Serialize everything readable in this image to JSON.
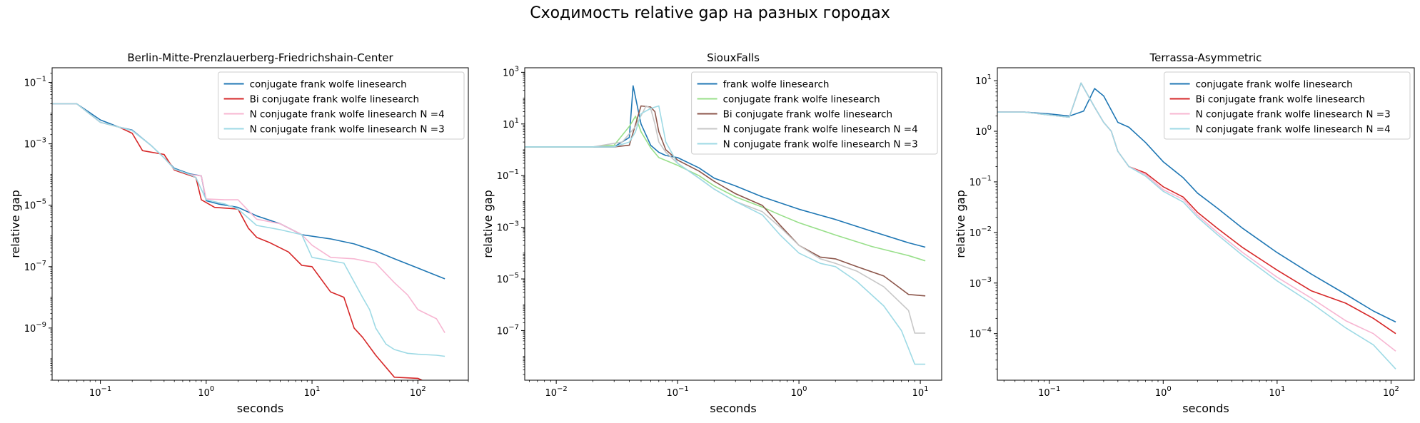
{
  "suptitle": "Сходимость relative gap на разных городах",
  "colors": {
    "blue": "#1f77b4",
    "red": "#d62728",
    "pink": "#f7b6d2",
    "cyan": "#9edae5",
    "green": "#98df8a",
    "brown": "#8c564b",
    "gray": "#c7c7c7"
  },
  "chart_data": [
    {
      "type": "line",
      "title": "Berlin-Mitte-Prenzlauerberg-Friedrichshain-Center",
      "xlabel": "seconds",
      "ylabel": "relative gap",
      "xscale": "log",
      "yscale": "log",
      "xlim": [
        0.035,
        300
      ],
      "ylim": [
        2e-11,
        0.3
      ],
      "xticks": [
        0.1,
        1,
        10,
        100
      ],
      "xtick_labels": [
        "10^-1",
        "10^0",
        "10^1",
        "10^2"
      ],
      "yticks": [
        1e-09,
        1e-07,
        1e-05,
        0.001,
        0.1
      ],
      "ytick_labels": [
        "10^-9",
        "10^-7",
        "10^-5",
        "10^-3",
        "10^-1"
      ],
      "legend_loc": "upper right",
      "series": [
        {
          "name": "conjugate frank wolfe linesearch",
          "color": "#1f77b4",
          "x": [
            0.035,
            0.06,
            0.1,
            0.15,
            0.2,
            0.3,
            0.4,
            0.5,
            0.7,
            0.9,
            1.0,
            1.3,
            2,
            3,
            5,
            8,
            15,
            25,
            40,
            60,
            100,
            180
          ],
          "y": [
            0.02,
            0.02,
            0.006,
            0.0035,
            0.0028,
            0.0009,
            0.00035,
            0.00016,
            0.000105,
            9e-05,
            1.4e-05,
            1.1e-05,
            8.5e-06,
            4.5e-06,
            2.5e-06,
            1.1e-06,
            8e-07,
            5.5e-07,
            3.2e-07,
            1.8e-07,
            9e-08,
            4e-08
          ]
        },
        {
          "name": "Bi conjugate frank wolfe linesearch",
          "color": "#d62728",
          "x": [
            0.035,
            0.06,
            0.1,
            0.15,
            0.2,
            0.25,
            0.4,
            0.5,
            0.8,
            0.9,
            1.2,
            2,
            2.5,
            3,
            4,
            6,
            8,
            10,
            15,
            20,
            25,
            30,
            40,
            60,
            100,
            150,
            200
          ],
          "y": [
            0.02,
            0.02,
            0.005,
            0.0035,
            0.0022,
            0.0006,
            0.00045,
            0.00014,
            8e-05,
            1.5e-05,
            8.5e-06,
            7.5e-06,
            1.8e-06,
            9e-07,
            6e-07,
            3e-07,
            1.1e-07,
            1e-07,
            1.5e-08,
            1e-08,
            1e-09,
            5e-10,
            1.3e-10,
            2.5e-11,
            2.3e-11,
            1.2e-11,
            8e-12
          ]
        },
        {
          "name": "N conjugate frank wolfe linesearch N =4",
          "color": "#f7b6d2",
          "x": [
            0.035,
            0.06,
            0.1,
            0.15,
            0.2,
            0.3,
            0.4,
            0.5,
            0.7,
            0.9,
            1.0,
            1.5,
            2,
            3,
            5,
            8,
            10,
            15,
            25,
            40,
            60,
            80,
            100,
            150,
            180
          ],
          "y": [
            0.02,
            0.02,
            0.005,
            0.0035,
            0.0027,
            0.0009,
            0.00035,
            0.00015,
            0.0001,
            9e-05,
            1.6e-05,
            1.5e-05,
            1.5e-05,
            3.5e-06,
            2.5e-06,
            1.1e-06,
            5e-07,
            2e-07,
            1.8e-07,
            1.3e-07,
            3e-08,
            1.2e-08,
            4e-09,
            2e-09,
            7e-10
          ]
        },
        {
          "name": "N conjugate frank wolfe linesearch N =3",
          "color": "#9edae5",
          "x": [
            0.035,
            0.06,
            0.1,
            0.15,
            0.2,
            0.3,
            0.4,
            0.5,
            0.7,
            0.8,
            1.0,
            1.5,
            2,
            3,
            5,
            8,
            10,
            20,
            30,
            35,
            40,
            50,
            60,
            80,
            100,
            150,
            180
          ],
          "y": [
            0.02,
            0.02,
            0.005,
            0.0035,
            0.0027,
            0.0009,
            0.00035,
            0.00015,
            0.0001,
            8e-05,
            1.5e-05,
            1.1e-05,
            7.5e-06,
            2.2e-06,
            1.6e-06,
            1.1e-06,
            2e-07,
            1.3e-07,
            1e-08,
            4e-09,
            1e-09,
            3e-10,
            2e-10,
            1.5e-10,
            1.4e-10,
            1.3e-10,
            1.2e-10
          ]
        }
      ]
    },
    {
      "type": "line",
      "title": "SiouxFalls",
      "xlabel": "seconds",
      "ylabel": "relative gap",
      "xscale": "log",
      "yscale": "log",
      "xlim": [
        0.0055,
        15
      ],
      "ylim": [
        1.2e-09,
        1500
      ],
      "xticks": [
        0.01,
        0.1,
        1,
        10
      ],
      "xtick_labels": [
        "10^-2",
        "10^-1",
        "10^0",
        "10^1"
      ],
      "yticks": [
        1e-07,
        1e-05,
        0.001,
        0.1,
        10,
        1000
      ],
      "ytick_labels": [
        "10^-7",
        "10^-5",
        "10^-3",
        "10^-1",
        "10^1",
        "10^3"
      ],
      "legend_loc": "upper right",
      "series": [
        {
          "name": "frank wolfe linesearch",
          "color": "#1f77b4",
          "x": [
            0.0055,
            0.02,
            0.03,
            0.04,
            0.043,
            0.05,
            0.06,
            0.07,
            0.08,
            0.1,
            0.15,
            0.2,
            0.3,
            0.5,
            1,
            2,
            4,
            8,
            11
          ],
          "y": [
            1.3,
            1.3,
            1.3,
            3,
            300,
            10,
            1.5,
            0.8,
            0.6,
            0.5,
            0.2,
            0.08,
            0.04,
            0.015,
            0.005,
            0.002,
            0.0007,
            0.00025,
            0.00017
          ]
        },
        {
          "name": "conjugate frank wolfe linesearch",
          "color": "#98df8a",
          "x": [
            0.0055,
            0.02,
            0.03,
            0.04,
            0.045,
            0.05,
            0.06,
            0.07,
            0.1,
            0.15,
            0.2,
            0.3,
            0.5,
            0.7,
            1,
            2,
            4,
            8,
            11
          ],
          "y": [
            1.3,
            1.3,
            1.5,
            8,
            20,
            5,
            1.2,
            0.5,
            0.25,
            0.1,
            0.04,
            0.015,
            0.006,
            0.003,
            0.0015,
            0.0005,
            0.00018,
            8e-05,
            5e-05
          ]
        },
        {
          "name": "Bi conjugate frank wolfe linesearch",
          "color": "#8c564b",
          "x": [
            0.0055,
            0.02,
            0.03,
            0.04,
            0.05,
            0.06,
            0.065,
            0.07,
            0.08,
            0.1,
            0.15,
            0.2,
            0.3,
            0.5,
            0.7,
            1,
            1.5,
            2,
            3,
            5,
            7,
            8,
            11
          ],
          "y": [
            1.3,
            1.3,
            1.3,
            1.5,
            50,
            45,
            30,
            5,
            1,
            0.4,
            0.15,
            0.06,
            0.02,
            0.007,
            0.0012,
            0.0002,
            7e-05,
            6e-05,
            3e-05,
            1.3e-05,
            4e-06,
            2.5e-06,
            2.2e-06
          ]
        },
        {
          "name": "N conjugate frank wolfe linesearch N =4",
          "color": "#c7c7c7",
          "x": [
            0.0055,
            0.02,
            0.035,
            0.045,
            0.055,
            0.06,
            0.065,
            0.07,
            0.08,
            0.1,
            0.15,
            0.2,
            0.3,
            0.5,
            0.7,
            1,
            1.5,
            2,
            3,
            5,
            8,
            9,
            11
          ],
          "y": [
            1.3,
            1.3,
            2,
            8,
            50,
            40,
            10,
            2,
            0.8,
            0.3,
            0.08,
            0.03,
            0.01,
            0.004,
            0.001,
            0.0002,
            6e-05,
            4e-05,
            2e-05,
            5e-06,
            6e-07,
            8e-08,
            8e-08
          ]
        },
        {
          "name": "N conjugate frank wolfe linesearch N =3",
          "color": "#9edae5",
          "x": [
            0.0055,
            0.02,
            0.03,
            0.04,
            0.045,
            0.05,
            0.06,
            0.07,
            0.08,
            0.1,
            0.15,
            0.2,
            0.3,
            0.5,
            0.7,
            1,
            1.5,
            2,
            3,
            5,
            7,
            9,
            11
          ],
          "y": [
            1.3,
            1.3,
            1.3,
            2,
            5,
            25,
            40,
            50,
            2,
            0.3,
            0.08,
            0.03,
            0.01,
            0.003,
            0.0005,
            0.0001,
            4e-05,
            3e-05,
            8e-06,
            9e-07,
            1e-07,
            5e-09,
            5e-09
          ]
        }
      ]
    },
    {
      "type": "line",
      "title": "Terrassa-Asymmetric",
      "xlabel": "seconds",
      "ylabel": "relative gap",
      "xscale": "log",
      "yscale": "log",
      "xlim": [
        0.035,
        160
      ],
      "ylim": [
        1.2e-05,
        18
      ],
      "xticks": [
        0.1,
        1,
        10,
        100
      ],
      "xtick_labels": [
        "10^-1",
        "10^0",
        "10^1",
        "10^2"
      ],
      "yticks": [
        0.0001,
        0.001,
        0.01,
        0.1,
        1,
        10
      ],
      "ytick_labels": [
        "10^-4",
        "10^-3",
        "10^-2",
        "10^-1",
        "10^0",
        "10^1"
      ],
      "legend_loc": "upper right",
      "series": [
        {
          "name": "conjugate frank wolfe linesearch",
          "color": "#1f77b4",
          "x": [
            0.035,
            0.06,
            0.1,
            0.15,
            0.2,
            0.25,
            0.3,
            0.4,
            0.5,
            0.7,
            1,
            1.5,
            2,
            3,
            5,
            10,
            20,
            40,
            70,
            110
          ],
          "y": [
            2.4,
            2.4,
            2.2,
            2.0,
            2.5,
            7,
            5,
            1.5,
            1.2,
            0.6,
            0.25,
            0.12,
            0.06,
            0.03,
            0.012,
            0.004,
            0.0015,
            0.0006,
            0.00028,
            0.00017
          ]
        },
        {
          "name": "Bi conjugate frank wolfe linesearch",
          "color": "#d62728",
          "x": [
            0.035,
            0.06,
            0.1,
            0.15,
            0.19,
            0.22,
            0.25,
            0.3,
            0.35,
            0.4,
            0.5,
            0.7,
            1,
            1.5,
            2,
            3,
            5,
            10,
            20,
            40,
            70,
            110
          ],
          "y": [
            2.4,
            2.4,
            2.1,
            1.9,
            9,
            5,
            3,
            1.5,
            1.0,
            0.4,
            0.2,
            0.15,
            0.08,
            0.05,
            0.025,
            0.012,
            0.005,
            0.0018,
            0.0007,
            0.0004,
            0.0002,
            0.0001
          ]
        },
        {
          "name": "N conjugate frank wolfe linesearch N =3",
          "color": "#f7b6d2",
          "x": [
            0.035,
            0.06,
            0.1,
            0.15,
            0.19,
            0.22,
            0.25,
            0.3,
            0.35,
            0.4,
            0.5,
            0.7,
            1,
            1.5,
            2,
            3,
            5,
            10,
            20,
            40,
            70,
            110
          ],
          "y": [
            2.4,
            2.4,
            2.1,
            1.9,
            9,
            5,
            3,
            1.5,
            1.0,
            0.4,
            0.2,
            0.14,
            0.07,
            0.045,
            0.022,
            0.01,
            0.004,
            0.0013,
            0.0005,
            0.00018,
            0.0001,
            4.5e-05
          ]
        },
        {
          "name": "N conjugate frank wolfe linesearch N =4",
          "color": "#9edae5",
          "x": [
            0.035,
            0.06,
            0.1,
            0.15,
            0.19,
            0.22,
            0.25,
            0.3,
            0.35,
            0.4,
            0.5,
            0.7,
            1,
            1.5,
            2,
            3,
            5,
            10,
            20,
            40,
            70,
            110
          ],
          "y": [
            2.4,
            2.4,
            2.1,
            1.9,
            9,
            5,
            3,
            1.5,
            1.0,
            0.4,
            0.2,
            0.13,
            0.065,
            0.04,
            0.02,
            0.009,
            0.0035,
            0.0011,
            0.0004,
            0.00013,
            6e-05,
            2e-05
          ]
        }
      ]
    }
  ]
}
